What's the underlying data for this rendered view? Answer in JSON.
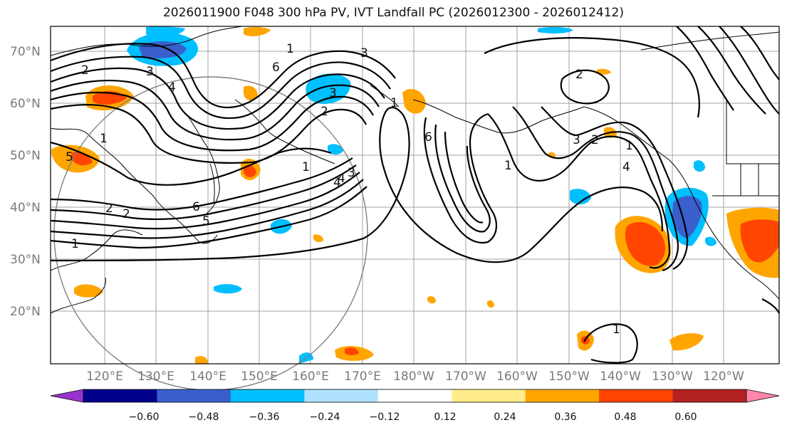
{
  "title": "2026011900 F048 300 hPa PV, IVT Landfall PC (2026012300 - 2026012412)",
  "map": {
    "latitude_labels": [
      "70°N",
      "60°N",
      "50°N",
      "40°N",
      "30°N",
      "20°N"
    ],
    "longitude_labels": [
      "120°E",
      "130°E",
      "140°E",
      "150°E",
      "160°E",
      "170°E",
      "180°W",
      "170°W",
      "160°W",
      "150°W",
      "140°W",
      "130°W",
      "120°W"
    ],
    "contour_labels": [
      "1",
      "2",
      "3",
      "4",
      "5",
      "6",
      "1",
      "2",
      "3",
      "1",
      "2",
      "3",
      "4",
      "5",
      "6",
      "1",
      "2",
      "3",
      "4",
      "6",
      "1",
      "2",
      "3",
      "4",
      "1",
      "2",
      "1",
      "1"
    ]
  },
  "colorbar": {
    "tick_labels": [
      "−0.60",
      "−0.48",
      "−0.36",
      "−0.24",
      "−0.12",
      "0.12",
      "0.24",
      "0.36",
      "0.48",
      "0.60"
    ],
    "colors": [
      "#9932cc",
      "#00008b",
      "#3a5fcd",
      "#00bfff",
      "#b0e2ff",
      "#ffffff",
      "#ffec8b",
      "#ffa500",
      "#ff4500",
      "#b22222",
      "#ff88aa"
    ]
  }
}
